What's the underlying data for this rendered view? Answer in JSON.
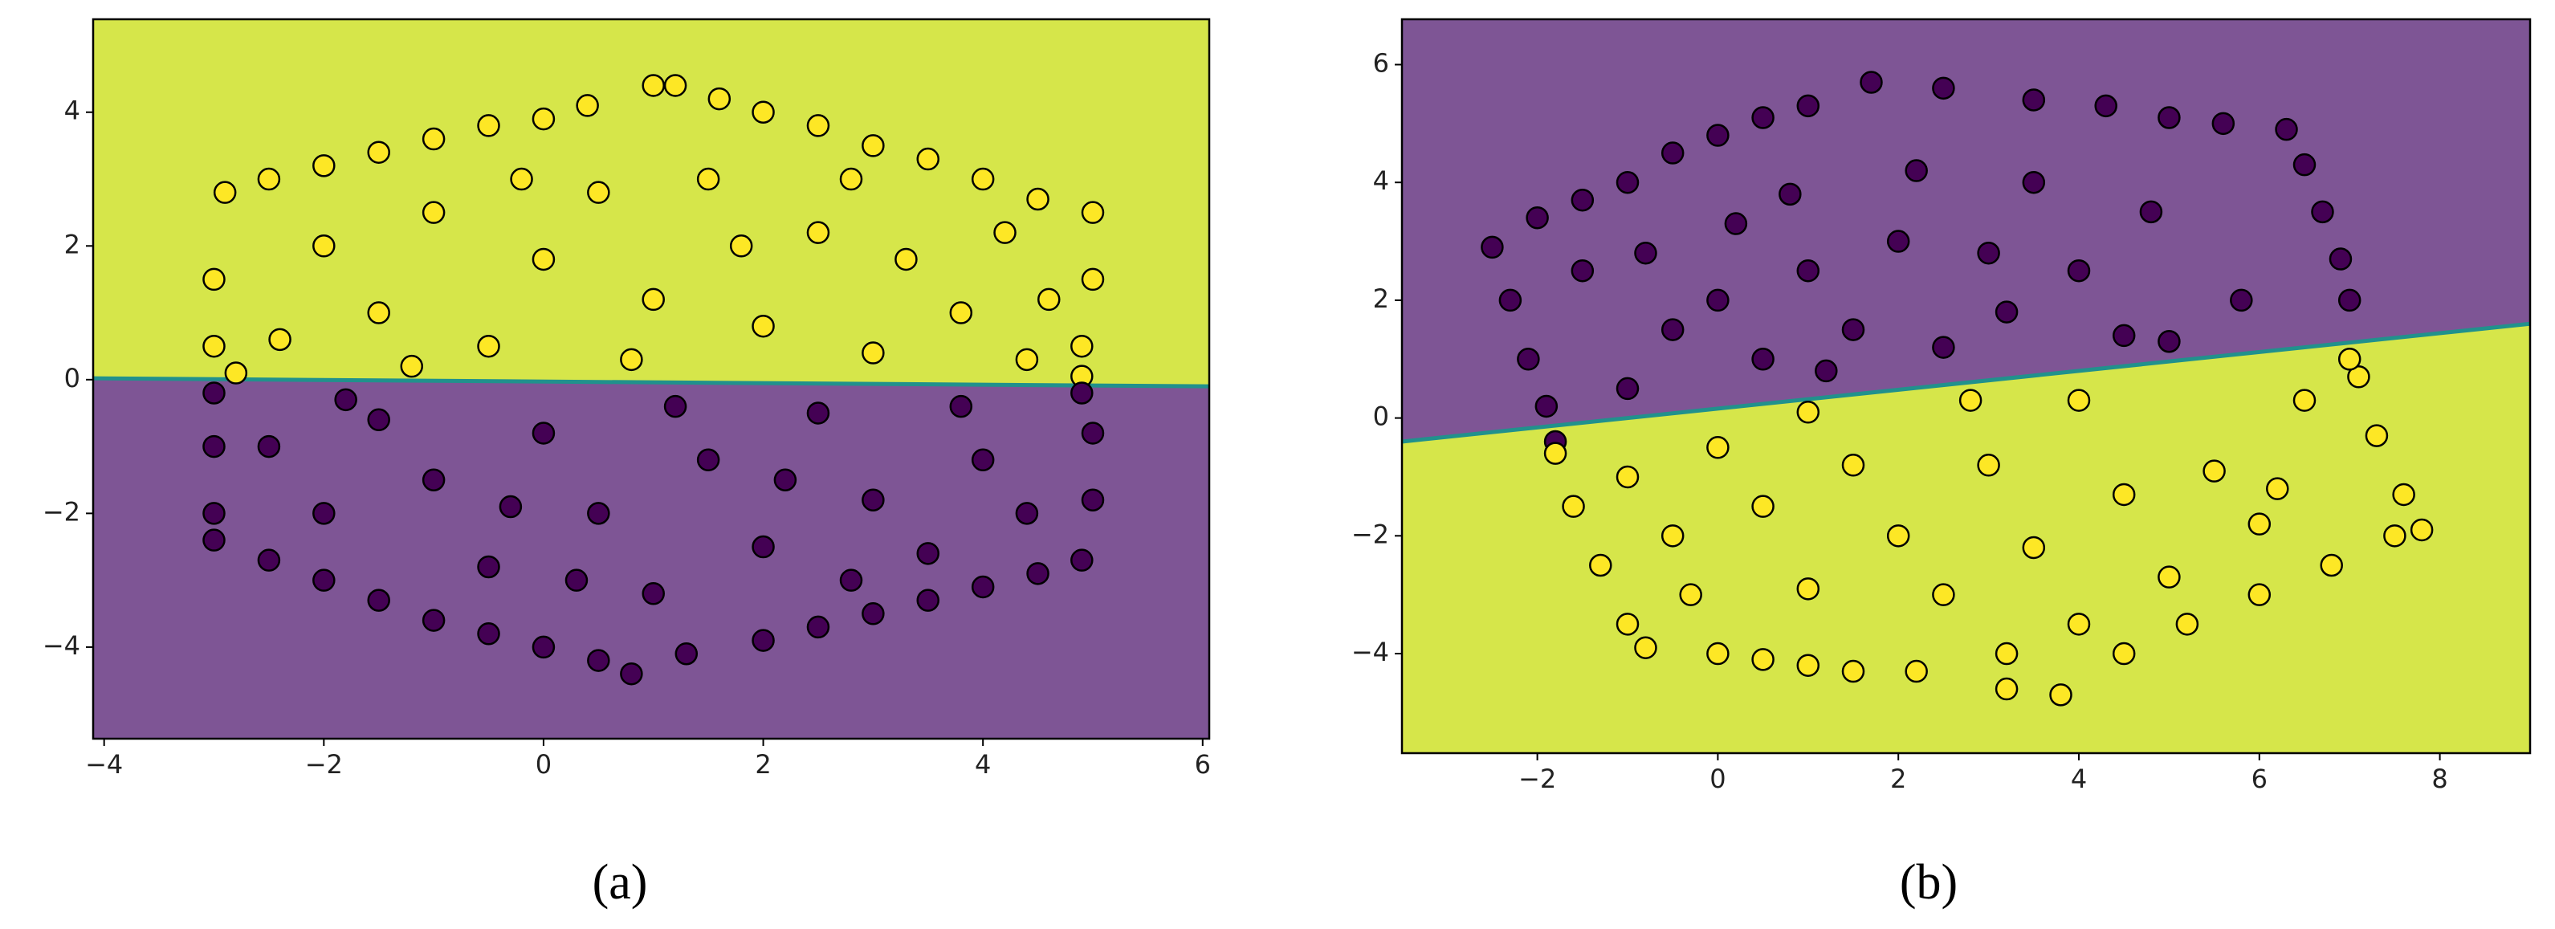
{
  "chart_data": [
    {
      "type": "scatter",
      "caption": "(a)",
      "xlim": [
        -4.1,
        6.06
      ],
      "ylim": [
        -5.37,
        5.39
      ],
      "xticks": [
        {
          "value": -4,
          "label": "−4"
        },
        {
          "value": -2,
          "label": "−2"
        },
        0,
        2,
        4,
        6
      ],
      "yticks": [
        {
          "value": -4,
          "label": "−4"
        },
        {
          "value": -2,
          "label": "−2"
        },
        0,
        2,
        4
      ],
      "background_colors": {
        "above": "#d6e64a",
        "below": "#7e5595"
      },
      "boundary": {
        "color": "#21918c",
        "x": [
          -4.1,
          6.06
        ],
        "y": [
          0.02,
          -0.1
        ]
      },
      "series": [
        {
          "color": "#fde725",
          "x": [
            -2.9,
            -2.5,
            -2.0,
            -1.5,
            -1.0,
            -0.5,
            0,
            0.4,
            1.0,
            1.2,
            1.6,
            2.0,
            2.5,
            3.0,
            3.5,
            4.0,
            4.5,
            5.0,
            5.0,
            4.9,
            4.9,
            -3.0,
            -3.0,
            -2.8,
            -2.0,
            -1.5,
            -1.0,
            -0.5,
            0,
            0.5,
            1.0,
            1.5,
            2.0,
            2.5,
            3.0,
            3.3,
            3.8,
            4.2,
            4.6,
            -2.4,
            -0.2,
            1.8,
            2.8,
            0.8,
            -1.2,
            4.4
          ],
          "y": [
            2.8,
            3.0,
            3.2,
            3.4,
            3.6,
            3.8,
            3.9,
            4.1,
            4.4,
            4.4,
            4.2,
            4.0,
            3.8,
            3.5,
            3.3,
            3.0,
            2.7,
            2.5,
            1.5,
            0.5,
            0.05,
            1.5,
            0.5,
            0.1,
            2.0,
            1.0,
            2.5,
            0.5,
            1.8,
            2.8,
            1.2,
            3.0,
            0.8,
            2.2,
            0.4,
            1.8,
            1.0,
            2.2,
            1.2,
            0.6,
            3.0,
            2.0,
            3.0,
            0.3,
            0.2,
            0.3
          ]
        },
        {
          "color": "#440154",
          "x": [
            -3.0,
            -3.0,
            -3.0,
            -3.0,
            -2.5,
            -2.0,
            -1.5,
            -1.0,
            -0.5,
            0,
            0.5,
            0.8,
            1.3,
            2.0,
            2.5,
            3.0,
            3.5,
            4.0,
            4.5,
            4.9,
            5.0,
            5.0,
            4.9,
            -2.5,
            -2.0,
            -1.5,
            -1.0,
            -0.5,
            0,
            0.5,
            1.0,
            1.5,
            2.0,
            2.5,
            3.0,
            3.5,
            4.0,
            4.4,
            -1.8,
            0.3,
            1.2,
            2.8,
            3.8,
            -0.3,
            2.2
          ],
          "y": [
            -0.2,
            -1.0,
            -2.0,
            -2.4,
            -2.7,
            -3.0,
            -3.3,
            -3.6,
            -3.8,
            -4.0,
            -4.2,
            -4.4,
            -4.1,
            -3.9,
            -3.7,
            -3.5,
            -3.3,
            -3.1,
            -2.9,
            -2.7,
            -1.8,
            -0.8,
            -0.2,
            -1.0,
            -2.0,
            -0.6,
            -1.5,
            -2.8,
            -0.8,
            -2.0,
            -3.2,
            -1.2,
            -2.5,
            -0.5,
            -1.8,
            -2.6,
            -1.2,
            -2.0,
            -0.3,
            -3.0,
            -0.4,
            -3.0,
            -0.4,
            -1.9,
            -1.5
          ]
        }
      ]
    },
    {
      "type": "scatter",
      "caption": "(b)",
      "xlim": [
        -3.5,
        9.0
      ],
      "ylim": [
        -5.69,
        6.77
      ],
      "xticks": [
        {
          "value": -2,
          "label": "−2"
        },
        0,
        2,
        4,
        6,
        8
      ],
      "yticks": [
        {
          "value": -4,
          "label": "−4"
        },
        {
          "value": -2,
          "label": "−2"
        },
        0,
        2,
        4,
        6
      ],
      "background_colors": {
        "above": "#7e5595",
        "below": "#d6e64a"
      },
      "boundary": {
        "color": "#21918c",
        "x": [
          -3.5,
          9.0
        ],
        "y": [
          -0.4,
          1.6
        ]
      },
      "series": [
        {
          "color": "#440154",
          "x": [
            -2.5,
            -2.0,
            -1.5,
            -1.0,
            -0.5,
            0,
            0.5,
            1.0,
            1.7,
            2.5,
            3.5,
            4.3,
            5.0,
            5.6,
            6.3,
            6.5,
            6.7,
            6.9,
            7.0,
            -2.3,
            -2.1,
            -1.9,
            -1.8,
            -1.0,
            -0.5,
            0,
            0.5,
            1.0,
            1.5,
            2.0,
            2.5,
            3.0,
            3.5,
            4.0,
            4.5,
            5.0,
            5.8,
            -1.5,
            0.2,
            1.2,
            2.2,
            3.2,
            0.8,
            -0.8,
            4.8
          ],
          "y": [
            2.9,
            3.4,
            3.7,
            4.0,
            4.5,
            4.8,
            5.1,
            5.3,
            5.7,
            5.6,
            5.4,
            5.3,
            5.1,
            5.0,
            4.9,
            4.3,
            3.5,
            2.7,
            2.0,
            2.0,
            1.0,
            0.2,
            -0.4,
            0.5,
            1.5,
            2.0,
            1.0,
            2.5,
            1.5,
            3.0,
            1.2,
            2.8,
            4.0,
            2.5,
            1.4,
            1.3,
            2.0,
            2.5,
            3.3,
            0.8,
            4.2,
            1.8,
            3.8,
            2.8,
            3.5
          ]
        },
        {
          "color": "#fde725",
          "x": [
            -1.8,
            -1.6,
            -1.3,
            -1.0,
            -0.8,
            0,
            0.5,
            1.0,
            1.5,
            2.2,
            3.2,
            3.8,
            4.5,
            5.2,
            6.0,
            6.8,
            7.5,
            7.8,
            7.6,
            7.3,
            7.1,
            7.0,
            -1.0,
            -0.5,
            0,
            0.5,
            1.0,
            1.5,
            2.0,
            2.5,
            3.0,
            3.5,
            4.0,
            4.5,
            5.0,
            5.5,
            6.0,
            6.5,
            4.0,
            2.8,
            1.0,
            -0.3,
            3.2,
            6.2
          ],
          "y": [
            -0.6,
            -1.5,
            -2.5,
            -3.5,
            -3.9,
            -4.0,
            -4.1,
            -4.2,
            -4.3,
            -4.3,
            -4.6,
            -4.7,
            -4.0,
            -3.5,
            -3.0,
            -2.5,
            -2.0,
            -1.9,
            -1.3,
            -0.3,
            0.7,
            1.0,
            -1.0,
            -2.0,
            -0.5,
            -1.5,
            -2.9,
            -0.8,
            -2.0,
            -3.0,
            -0.8,
            -2.2,
            -3.5,
            -1.3,
            -2.7,
            -0.9,
            -1.8,
            0.3,
            0.3,
            0.3,
            0.1,
            -3.0,
            -4.0,
            -1.2
          ]
        }
      ]
    }
  ]
}
